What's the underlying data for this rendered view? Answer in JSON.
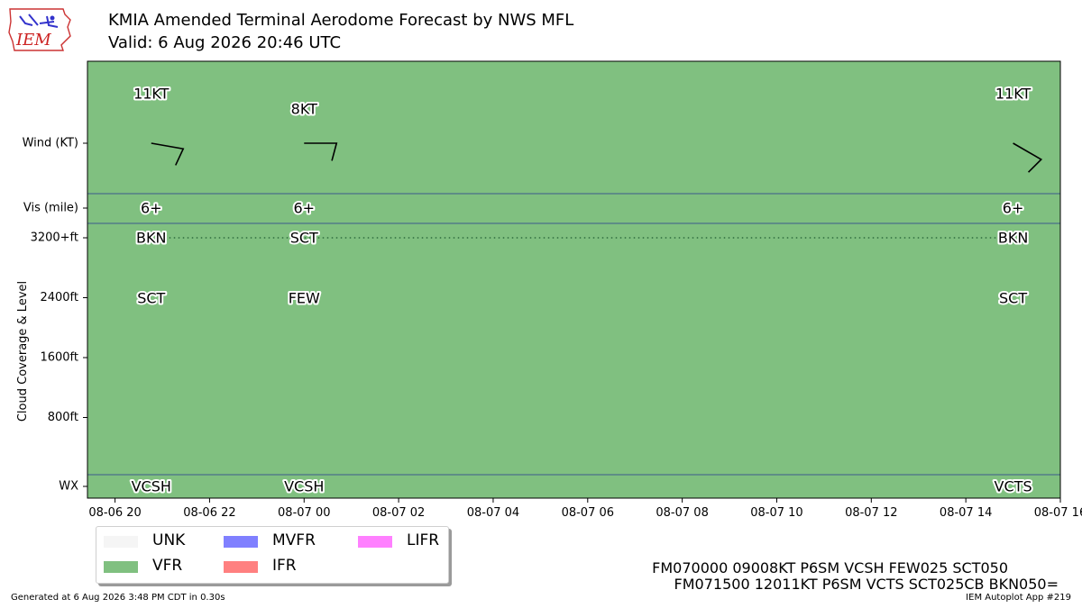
{
  "header": {
    "title": "KMIA Amended Terminal Aerodome Forecast by NWS MFL",
    "subtitle": "Valid: 6 Aug 2026 20:46 UTC",
    "logo_text": "IEM"
  },
  "chart_data": {
    "type": "table",
    "background_category": "VFR",
    "x_axis": {
      "range": [
        "2026-08-06 19:25",
        "2026-08-07 16:00"
      ],
      "ticks": [
        {
          "t": "2026-08-06 20:00",
          "label": "08-06 20"
        },
        {
          "t": "2026-08-06 22:00",
          "label": "08-06 22"
        },
        {
          "t": "2026-08-07 00:00",
          "label": "08-07 00"
        },
        {
          "t": "2026-08-07 02:00",
          "label": "08-07 02"
        },
        {
          "t": "2026-08-07 04:00",
          "label": "08-07 04"
        },
        {
          "t": "2026-08-07 06:00",
          "label": "08-07 06"
        },
        {
          "t": "2026-08-07 08:00",
          "label": "08-07 08"
        },
        {
          "t": "2026-08-07 10:00",
          "label": "08-07 10"
        },
        {
          "t": "2026-08-07 12:00",
          "label": "08-07 12"
        },
        {
          "t": "2026-08-07 14:00",
          "label": "08-07 14"
        },
        {
          "t": "2026-08-07 16:00",
          "label": "08-07 16"
        }
      ]
    },
    "rows": {
      "wind_label": "Wind (KT)",
      "vis_label": "Vis (mile)",
      "wx_label": "WX",
      "cloud_axis_label": "Cloud Coverage & Level",
      "cloud_ticks": [
        {
          "ft": 800,
          "label": "800ft"
        },
        {
          "ft": 1600,
          "label": "1600ft"
        },
        {
          "ft": 2400,
          "label": "2400ft"
        },
        {
          "ft": 3200,
          "label": "3200+ft"
        }
      ],
      "cloud_range_ft": [
        0,
        3200
      ]
    },
    "forecasts": [
      {
        "t": "2026-08-06 20:46",
        "wind_dir": 100,
        "wind_kt": 11,
        "wind_label": "11KT",
        "vis": "6+",
        "clouds": [
          {
            "cover": "SCT",
            "ft": 2500
          },
          {
            "cover": "BKN",
            "ft": 3200
          }
        ],
        "wx": "VCSH"
      },
      {
        "t": "2026-08-07 00:00",
        "wind_dir": 90,
        "wind_kt": 8,
        "wind_label": "8KT",
        "vis": "6+",
        "clouds": [
          {
            "cover": "FEW",
            "ft": 2500
          },
          {
            "cover": "SCT",
            "ft": 3200
          }
        ],
        "wx": "VCSH"
      },
      {
        "t": "2026-08-07 15:00",
        "wind_dir": 120,
        "wind_kt": 11,
        "wind_label": "11KT",
        "vis": "6+",
        "clouds": [
          {
            "cover": "SCT",
            "ft": 2500
          },
          {
            "cover": "BKN",
            "ft": 3200
          }
        ],
        "wx": "VCTS"
      }
    ],
    "cloud_line_ft": 3200,
    "legend": [
      {
        "label": "UNK",
        "color": "#f5f5f5"
      },
      {
        "label": "VFR",
        "color": "#80c080"
      },
      {
        "label": "MVFR",
        "color": "#8080ff"
      },
      {
        "label": "IFR",
        "color": "#ff8080"
      },
      {
        "label": "LIFR",
        "color": "#ff80ff"
      }
    ]
  },
  "taf_text": {
    "line1": "FM070000 09008KT P6SM VCSH FEW025 SCT050",
    "line2": "FM071500 12011KT P6SM VCTS SCT025CB BKN050="
  },
  "footer": {
    "left": "Generated at 6 Aug 2026 3:48 PM CDT in 0.30s",
    "right": "IEM Autoplot App #219"
  }
}
